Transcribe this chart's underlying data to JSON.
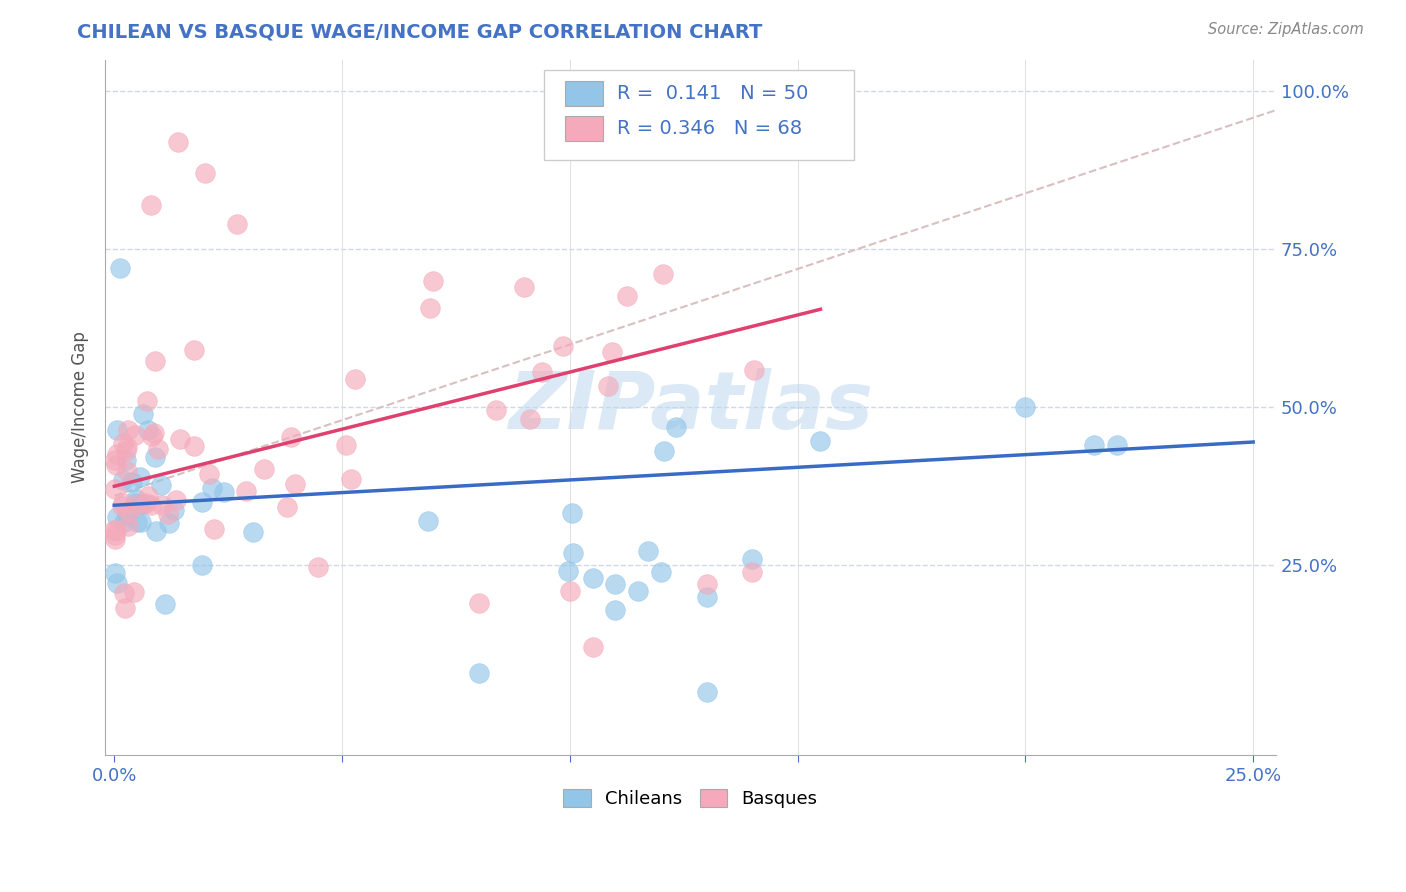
{
  "title": "CHILEAN VS BASQUE WAGE/INCOME GAP CORRELATION CHART",
  "source": "Source: ZipAtlas.com",
  "ylabel": "Wage/Income Gap",
  "ylim": [
    -0.05,
    1.05
  ],
  "xlim": [
    -0.002,
    0.255
  ],
  "yticks": [
    0.0,
    0.25,
    0.5,
    0.75,
    1.0
  ],
  "ytick_labels": [
    "",
    "25.0%",
    "50.0%",
    "75.0%",
    "100.0%"
  ],
  "xticks": [
    0.0,
    0.05,
    0.1,
    0.15,
    0.2,
    0.25
  ],
  "xtick_labels": [
    "0.0%",
    "",
    "",
    "",
    "",
    "25.0%"
  ],
  "chilean_color": "#92C5E8",
  "basque_color": "#F4AABB",
  "chilean_line_color": "#3A6BC4",
  "basque_line_color": "#E04070",
  "ref_line_color": "#D8C0C0",
  "legend_R_chilean": "0.141",
  "legend_N_chilean": "50",
  "legend_R_basque": "0.346",
  "legend_N_basque": "68",
  "watermark": "ZIPatlas",
  "background_color": "#FFFFFF",
  "grid_color": "#D0D8E8",
  "chile_trend_x0": 0.0,
  "chile_trend_y0": 0.345,
  "chile_trend_x1": 0.25,
  "chile_trend_y1": 0.445,
  "basque_trend_x0": 0.0,
  "basque_trend_y0": 0.375,
  "basque_trend_x1": 0.155,
  "basque_trend_y1": 0.655,
  "ref_line_x0": 0.0,
  "ref_line_y0": 0.36,
  "ref_line_x1": 0.255,
  "ref_line_y1": 0.97
}
